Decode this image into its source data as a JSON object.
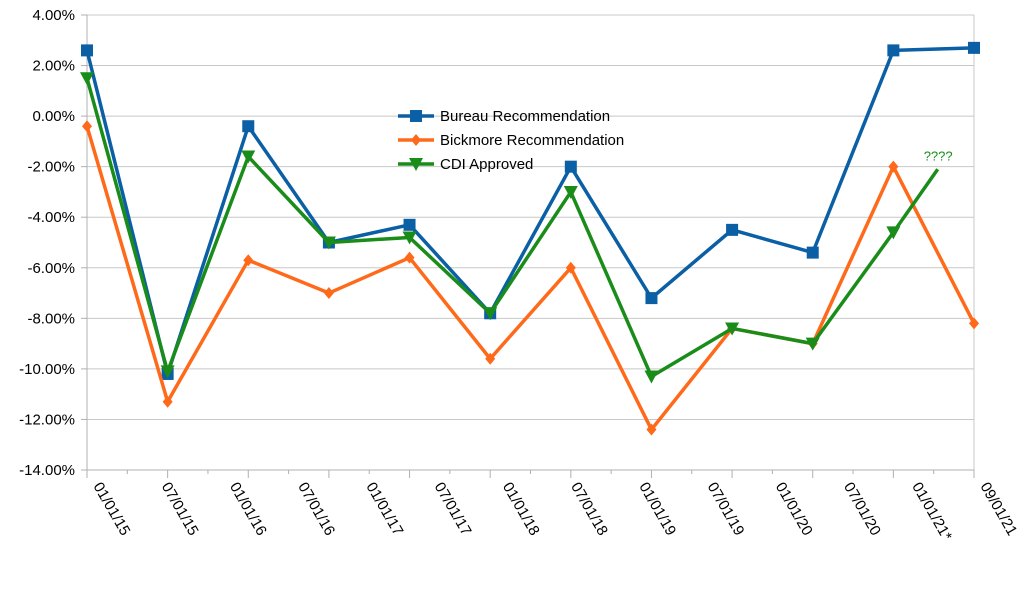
{
  "chart_data": {
    "type": "line",
    "categories": [
      "01/01/15",
      "07/01/15",
      "01/01/16",
      "07/01/16",
      "01/01/17",
      "07/01/17",
      "01/01/18",
      "07/01/18",
      "01/01/19",
      "07/01/19",
      "01/01/20",
      "07/01/20",
      "01/01/21*",
      "09/01/21"
    ],
    "ylim": [
      -14,
      4
    ],
    "yticks": [
      4,
      2,
      0,
      -2,
      -4,
      -6,
      -8,
      -10,
      -12,
      -14
    ],
    "ytick_labels": [
      "4.00%",
      "2.00%",
      "0.00%",
      "-2.00%",
      "-4.00%",
      "-6.00%",
      "-8.00%",
      "-10.00%",
      "-12.00%",
      "-14.00%"
    ],
    "grid": true,
    "legend_position": "center-top",
    "series": [
      {
        "name": "Bureau Recommendation",
        "color": "#0b5fa5",
        "marker": "square",
        "values": [
          {
            "x": 0,
            "y": 2.6
          },
          {
            "x": 1,
            "y": -10.2
          },
          {
            "x": 2,
            "y": -0.4
          },
          {
            "x": 3,
            "y": -5.0
          },
          {
            "x": 4,
            "y": -4.3
          },
          {
            "x": 5,
            "y": -7.8
          },
          {
            "x": 6,
            "y": -2.0
          },
          {
            "x": 7,
            "y": -7.2
          },
          {
            "x": 8,
            "y": -4.5
          },
          {
            "x": 9,
            "y": -5.4
          },
          {
            "x": 10,
            "y": 2.6
          },
          {
            "x": 11,
            "y": 2.7
          }
        ]
      },
      {
        "name": "Bickmore Recommendation",
        "color": "#ff6a1a",
        "marker": "diamond",
        "values": [
          {
            "x": 0,
            "y": -0.4
          },
          {
            "x": 1,
            "y": -11.3
          },
          {
            "x": 2,
            "y": -5.7
          },
          {
            "x": 3,
            "y": -7.0
          },
          {
            "x": 4,
            "y": -5.6
          },
          {
            "x": 5,
            "y": -9.6
          },
          {
            "x": 6,
            "y": -6.0
          },
          {
            "x": 7,
            "y": -12.4
          },
          {
            "x": 8,
            "y": -8.4
          },
          {
            "x": 9,
            "y": -9.0
          },
          {
            "x": 10,
            "y": -2.0
          },
          {
            "x": 11,
            "y": -8.2
          }
        ]
      },
      {
        "name": "CDI Approved",
        "color": "#1a8c1a",
        "marker": "triangle-down",
        "values": [
          {
            "x": 0,
            "y": 1.5
          },
          {
            "x": 1,
            "y": -10.1
          },
          {
            "x": 2,
            "y": -1.6
          },
          {
            "x": 3,
            "y": -5.0
          },
          {
            "x": 4,
            "y": -4.8
          },
          {
            "x": 5,
            "y": -7.8
          },
          {
            "x": 6,
            "y": -3.0
          },
          {
            "x": 7,
            "y": -10.3
          },
          {
            "x": 8,
            "y": -8.4
          },
          {
            "x": 9,
            "y": -9.0
          },
          {
            "x": 10,
            "y": -4.6
          }
        ],
        "extension_to": {
          "x": 10.55,
          "y": -2.1
        }
      }
    ],
    "annotations": [
      {
        "text": "????",
        "color": "#1a8c1a",
        "x": 10.55,
        "y": -1.6
      }
    ]
  }
}
